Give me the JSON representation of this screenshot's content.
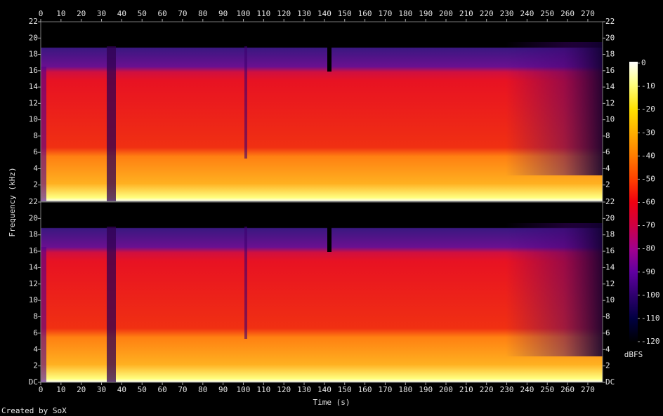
{
  "chart_data": {
    "type": "spectrogram",
    "x_label": "Time (s)",
    "y_label": "Frequency (kHz)",
    "xlim": [
      0,
      277.3
    ],
    "xticks": [
      0,
      10,
      20,
      30,
      40,
      50,
      60,
      70,
      80,
      90,
      100,
      110,
      120,
      130,
      140,
      150,
      160,
      170,
      180,
      190,
      200,
      210,
      220,
      230,
      240,
      250,
      260,
      270
    ],
    "channels": [
      {
        "ylim": [
          0,
          22
        ],
        "yticks": [
          2,
          4,
          6,
          8,
          10,
          12,
          14,
          16,
          18,
          20,
          22
        ]
      },
      {
        "ylim": [
          0,
          22
        ],
        "yticks": [
          {
            "value": 0,
            "label": "DC"
          },
          2,
          4,
          6,
          8,
          10,
          12,
          14,
          16,
          18,
          20,
          22
        ]
      }
    ],
    "colorbar": {
      "label": "dBFS",
      "lim": [
        -120,
        0
      ],
      "ticks": [
        0,
        -10,
        -20,
        -30,
        -40,
        -50,
        -60,
        -70,
        -80,
        -90,
        -100,
        -110,
        -120
      ]
    }
  },
  "footer": "Created by SoX"
}
